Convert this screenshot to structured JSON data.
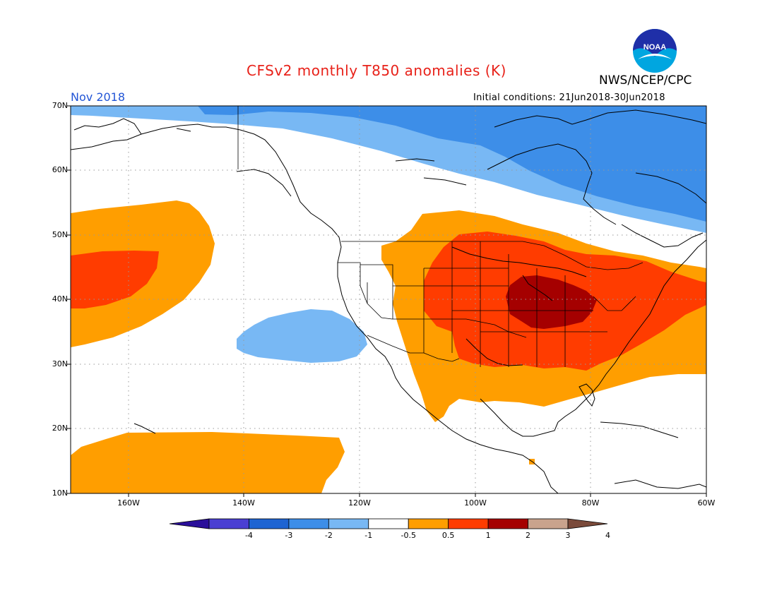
{
  "header": {
    "title": "CFSv2 monthly T850 anomalies (K)",
    "organization": "NWS/NCEP/CPC",
    "month": "Nov 2018",
    "initial_conditions": "Initial conditions: 21Jun2018-30Jun2018",
    "logo_text": "NOAA"
  },
  "axes": {
    "lat_labels": [
      "70N",
      "60N",
      "50N",
      "40N",
      "30N",
      "20N",
      "10N"
    ],
    "lon_labels": [
      "160W",
      "140W",
      "120W",
      "100W",
      "80W",
      "60W"
    ]
  },
  "colorbar": {
    "labels": [
      "-4",
      "-3",
      "-2",
      "-1",
      "-0.5",
      "0.5",
      "1",
      "2",
      "3",
      "4"
    ],
    "colors": [
      "#2a0f9a",
      "#4a3fd2",
      "#1e64d2",
      "#3d8ee8",
      "#78b8f4",
      "#ffffff",
      "#ff9e00",
      "#ff3c00",
      "#a50000",
      "#c9a38d",
      "#7a4a3a"
    ]
  },
  "palette": {
    "title_color": "#e8221a",
    "month_color": "#2255d6",
    "ocean": "#ffffff"
  }
}
